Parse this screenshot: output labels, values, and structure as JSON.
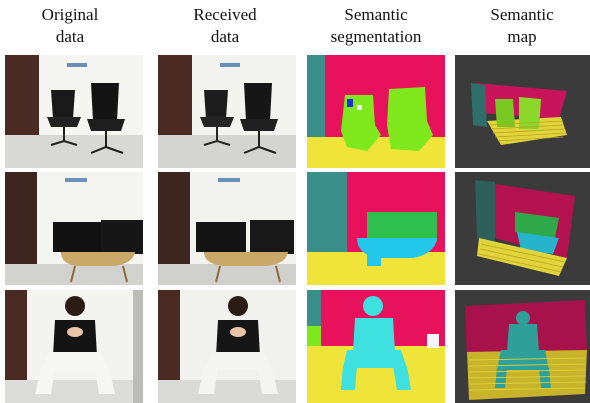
{
  "headers": {
    "original": [
      "Original",
      "data"
    ],
    "received": [
      "Received",
      "data"
    ],
    "segmentation": [
      "Semantic",
      "segmentation"
    ],
    "map": [
      "Semantic",
      "map"
    ]
  },
  "rows": [
    "chairs",
    "monitors",
    "person"
  ],
  "colors": {
    "wall_seg": "#e8125c",
    "floor_seg": "#f0e43a",
    "object_seg": "#7ee81c",
    "monitor_seg": "#2fbf4f",
    "table_seg": "#22c7ea",
    "person_seg": "#3fe0e0",
    "door_seg": "#3a8f8a",
    "map_bg": "#3b3b3b"
  }
}
